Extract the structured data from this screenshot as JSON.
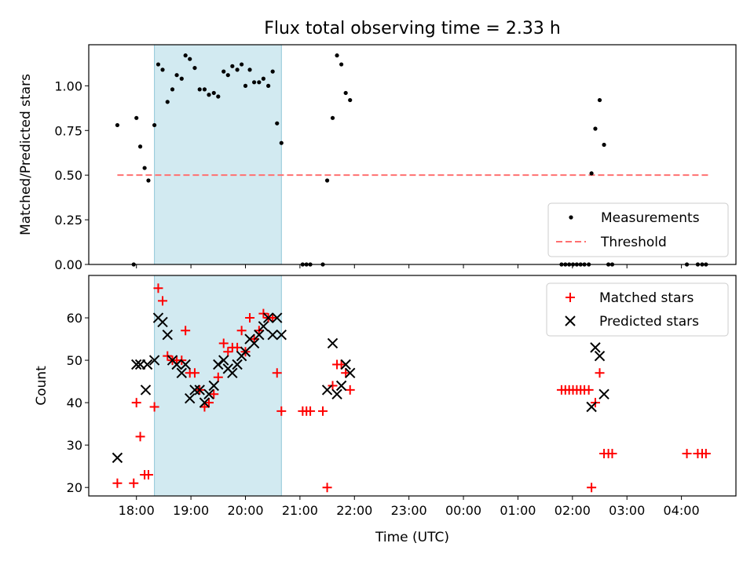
{
  "figure": {
    "title": "Flux total observing time = 2.33 h",
    "xlabel": "Time (UTC)",
    "x_tick_labels": [
      "18:00",
      "19:00",
      "20:00",
      "21:00",
      "22:00",
      "23:00",
      "00:00",
      "01:00",
      "02:00",
      "03:00",
      "04:00"
    ]
  },
  "colors": {
    "measurements": "#000000",
    "threshold": "#ff7070",
    "matched": "#ff0000",
    "predicted": "#000000",
    "shade": "#add8e6"
  },
  "chart_data": [
    {
      "type": "scatter",
      "title": "Flux total observing time = 2.33 h",
      "xlabel": "",
      "ylabel": "Matched/Predicted stars",
      "x_unit": "hours since 18:00 UTC",
      "xlim": [
        -0.875,
        11.0
      ],
      "ylim": [
        0,
        1.23
      ],
      "yticks": [
        0.0,
        0.25,
        0.5,
        0.75,
        1.0
      ],
      "ytick_labels": [
        "0.00",
        "0.25",
        "0.50",
        "0.75",
        "1.00"
      ],
      "shaded_interval": [
        0.33,
        2.66
      ],
      "legend": {
        "position": "lower-right",
        "entries": [
          "Measurements",
          "Threshold"
        ]
      },
      "threshold": {
        "name": "Threshold",
        "y": 0.5,
        "x_range": [
          -0.35,
          10.5
        ]
      },
      "series": [
        {
          "name": "Measurements",
          "marker": "dot",
          "points": [
            [
              -0.35,
              0.78
            ],
            [
              -0.05,
              0.0
            ],
            [
              0.0,
              0.82
            ],
            [
              0.07,
              0.66
            ],
            [
              0.15,
              0.54
            ],
            [
              0.22,
              0.47
            ],
            [
              0.33,
              0.78
            ],
            [
              0.4,
              1.12
            ],
            [
              0.48,
              1.09
            ],
            [
              0.57,
              0.91
            ],
            [
              0.66,
              0.98
            ],
            [
              0.74,
              1.06
            ],
            [
              0.83,
              1.04
            ],
            [
              0.9,
              1.17
            ],
            [
              0.98,
              1.15
            ],
            [
              1.07,
              1.1
            ],
            [
              1.16,
              0.98
            ],
            [
              1.25,
              0.98
            ],
            [
              1.33,
              0.95
            ],
            [
              1.42,
              0.96
            ],
            [
              1.5,
              0.94
            ],
            [
              1.6,
              1.08
            ],
            [
              1.68,
              1.06
            ],
            [
              1.76,
              1.11
            ],
            [
              1.85,
              1.09
            ],
            [
              1.93,
              1.12
            ],
            [
              2.0,
              1.0
            ],
            [
              2.08,
              1.09
            ],
            [
              2.16,
              1.02
            ],
            [
              2.25,
              1.02
            ],
            [
              2.33,
              1.04
            ],
            [
              2.42,
              1.0
            ],
            [
              2.5,
              1.08
            ],
            [
              2.58,
              0.79
            ],
            [
              2.66,
              0.68
            ],
            [
              3.05,
              0.0
            ],
            [
              3.12,
              0.0
            ],
            [
              3.19,
              0.0
            ],
            [
              3.42,
              0.0
            ],
            [
              3.5,
              0.47
            ],
            [
              3.6,
              0.82
            ],
            [
              3.68,
              1.17
            ],
            [
              3.76,
              1.12
            ],
            [
              3.84,
              0.96
            ],
            [
              3.92,
              0.92
            ],
            [
              7.8,
              0.0
            ],
            [
              7.87,
              0.0
            ],
            [
              7.94,
              0.0
            ],
            [
              8.01,
              0.0
            ],
            [
              8.08,
              0.0
            ],
            [
              8.15,
              0.0
            ],
            [
              8.22,
              0.0
            ],
            [
              8.3,
              0.0
            ],
            [
              8.35,
              0.51
            ],
            [
              8.42,
              0.76
            ],
            [
              8.5,
              0.92
            ],
            [
              8.58,
              0.67
            ],
            [
              8.66,
              0.0
            ],
            [
              8.73,
              0.0
            ],
            [
              10.1,
              0.0
            ],
            [
              10.3,
              0.0
            ],
            [
              10.38,
              0.0
            ],
            [
              10.45,
              0.0
            ]
          ]
        }
      ]
    },
    {
      "type": "scatter",
      "xlabel": "Time (UTC)",
      "ylabel": "Count",
      "x_unit": "hours since 18:00 UTC",
      "xlim": [
        -0.875,
        11.0
      ],
      "ylim": [
        18,
        70
      ],
      "yticks": [
        20,
        30,
        40,
        50,
        60
      ],
      "ytick_labels": [
        "20",
        "30",
        "40",
        "50",
        "60"
      ],
      "x_tick_values": [
        0,
        1,
        2,
        3,
        4,
        5,
        6,
        7,
        8,
        9,
        10
      ],
      "shaded_interval": [
        0.33,
        2.66
      ],
      "legend": {
        "position": "top-right",
        "entries": [
          "Matched stars",
          "Predicted stars"
        ]
      },
      "series": [
        {
          "name": "Matched stars",
          "marker": "plus",
          "points": [
            [
              -0.35,
              21
            ],
            [
              -0.05,
              21
            ],
            [
              0.0,
              40
            ],
            [
              0.07,
              32
            ],
            [
              0.15,
              23
            ],
            [
              0.22,
              23
            ],
            [
              0.33,
              39
            ],
            [
              0.4,
              67
            ],
            [
              0.48,
              64
            ],
            [
              0.57,
              51
            ],
            [
              0.66,
              50
            ],
            [
              0.74,
              50
            ],
            [
              0.83,
              50
            ],
            [
              0.9,
              57
            ],
            [
              0.98,
              47
            ],
            [
              1.07,
              47
            ],
            [
              1.16,
              43
            ],
            [
              1.25,
              39
            ],
            [
              1.33,
              40
            ],
            [
              1.42,
              42
            ],
            [
              1.5,
              46
            ],
            [
              1.6,
              54
            ],
            [
              1.68,
              52
            ],
            [
              1.76,
              53
            ],
            [
              1.85,
              53
            ],
            [
              1.93,
              57
            ],
            [
              2.0,
              52
            ],
            [
              2.08,
              60
            ],
            [
              2.16,
              55
            ],
            [
              2.25,
              57
            ],
            [
              2.33,
              61
            ],
            [
              2.42,
              60
            ],
            [
              2.5,
              60
            ],
            [
              2.58,
              47
            ],
            [
              2.66,
              38
            ],
            [
              3.05,
              38
            ],
            [
              3.12,
              38
            ],
            [
              3.19,
              38
            ],
            [
              3.42,
              38
            ],
            [
              3.5,
              20
            ],
            [
              3.6,
              44
            ],
            [
              3.68,
              49
            ],
            [
              3.76,
              49
            ],
            [
              3.84,
              47
            ],
            [
              3.92,
              43
            ],
            [
              7.8,
              43
            ],
            [
              7.87,
              43
            ],
            [
              7.94,
              43
            ],
            [
              8.01,
              43
            ],
            [
              8.08,
              43
            ],
            [
              8.15,
              43
            ],
            [
              8.22,
              43
            ],
            [
              8.3,
              43
            ],
            [
              8.35,
              20
            ],
            [
              8.42,
              40
            ],
            [
              8.5,
              47
            ],
            [
              8.58,
              28
            ],
            [
              8.66,
              28
            ],
            [
              8.73,
              28
            ],
            [
              10.1,
              28
            ],
            [
              10.3,
              28
            ],
            [
              10.38,
              28
            ],
            [
              10.45,
              28
            ]
          ]
        },
        {
          "name": "Predicted stars",
          "marker": "x",
          "points": [
            [
              -0.35,
              27
            ],
            [
              0.0,
              49
            ],
            [
              0.07,
              49
            ],
            [
              0.17,
              43
            ],
            [
              0.2,
              49
            ],
            [
              0.33,
              50
            ],
            [
              0.4,
              60
            ],
            [
              0.48,
              59
            ],
            [
              0.57,
              56
            ],
            [
              0.66,
              50
            ],
            [
              0.74,
              49
            ],
            [
              0.83,
              47
            ],
            [
              0.9,
              49
            ],
            [
              0.98,
              41
            ],
            [
              1.07,
              43
            ],
            [
              1.16,
              43
            ],
            [
              1.25,
              40
            ],
            [
              1.33,
              42
            ],
            [
              1.42,
              44
            ],
            [
              1.5,
              49
            ],
            [
              1.6,
              50
            ],
            [
              1.68,
              48
            ],
            [
              1.76,
              47
            ],
            [
              1.85,
              49
            ],
            [
              1.93,
              51
            ],
            [
              2.0,
              52
            ],
            [
              2.08,
              55
            ],
            [
              2.16,
              54
            ],
            [
              2.25,
              56
            ],
            [
              2.33,
              58
            ],
            [
              2.42,
              60
            ],
            [
              2.5,
              56
            ],
            [
              2.58,
              60
            ],
            [
              2.66,
              56
            ],
            [
              3.5,
              43
            ],
            [
              3.6,
              54
            ],
            [
              3.68,
              42
            ],
            [
              3.76,
              44
            ],
            [
              3.84,
              49
            ],
            [
              3.92,
              47
            ],
            [
              8.35,
              39
            ],
            [
              8.42,
              53
            ],
            [
              8.5,
              51
            ],
            [
              8.58,
              42
            ]
          ]
        }
      ]
    }
  ]
}
